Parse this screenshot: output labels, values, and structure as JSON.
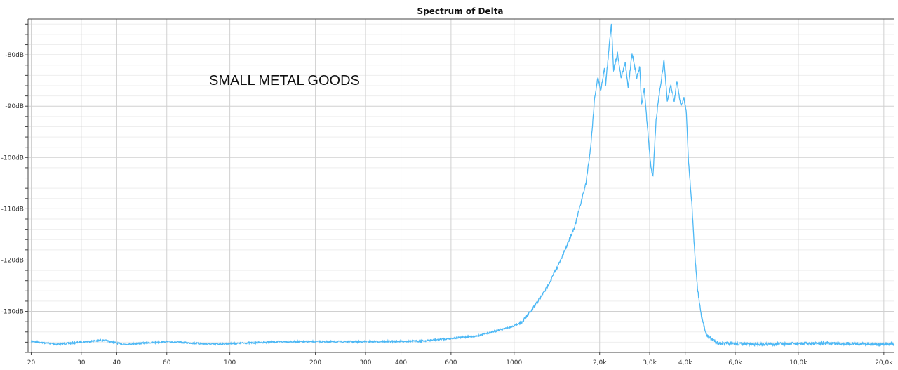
{
  "chart_data": {
    "type": "line",
    "title": "Spectrum of Delta",
    "annotation": "SMALL METAL GOODS",
    "xscale": "log",
    "xlim": [
      19.5,
      21800
    ],
    "ylim": [
      -138,
      -73
    ],
    "grid": true,
    "x_ticks": [
      20,
      30,
      40,
      60,
      100,
      200,
      300,
      400,
      600,
      1000,
      2000,
      3000,
      4000,
      6000,
      10000,
      20000
    ],
    "x_tick_labels": [
      "20",
      "30",
      "40",
      "60",
      "100",
      "200",
      "300",
      "400",
      "600",
      "1000",
      "2,0k",
      "3,0k",
      "4,0k",
      "6,0k",
      "10,0k",
      "20,0k"
    ],
    "y_ticks": [
      -80,
      -90,
      -100,
      -110,
      -120,
      -130
    ],
    "y_tick_labels": [
      "-80dB",
      "-90dB",
      "-100dB",
      "-110dB",
      "-120dB",
      "-130dB"
    ],
    "line_color": "#4db8f5",
    "series": [
      {
        "x": [
          20,
          24.7,
          36,
          42,
          61,
          86,
          152,
          267,
          470,
          740,
          980,
          1070,
          1160,
          1300,
          1460,
          1640,
          1790,
          1860,
          1920,
          1970,
          2020,
          2080,
          2100,
          2200,
          2240,
          2310,
          2380,
          2460,
          2520,
          2600,
          2700,
          2770,
          2810,
          2870,
          2930,
          3030,
          3080,
          3160,
          3240,
          3370,
          3460,
          3560,
          3660,
          3740,
          3860,
          3960,
          4040,
          4110,
          4220,
          4320,
          4420,
          4560,
          4770,
          5250,
          7000,
          12600,
          21800
        ],
        "y": [
          -135.8,
          -136.4,
          -135.6,
          -136.4,
          -135.9,
          -136.4,
          -135.9,
          -135.9,
          -135.8,
          -134.8,
          -133,
          -132,
          -129.6,
          -125.5,
          -120,
          -113.2,
          -105,
          -98,
          -88.5,
          -84.4,
          -87,
          -82.3,
          -85.8,
          -73.7,
          -83,
          -79.6,
          -84.4,
          -81.6,
          -86.4,
          -79.6,
          -84.4,
          -82.3,
          -89.9,
          -86.4,
          -92.6,
          -102,
          -103.6,
          -92.6,
          -87.8,
          -81,
          -89.2,
          -85.8,
          -89.2,
          -85,
          -89.9,
          -88.5,
          -91.2,
          -100.8,
          -109,
          -118.6,
          -125.5,
          -131,
          -134.8,
          -136.2,
          -136.4,
          -136.2,
          -136.4
        ]
      }
    ]
  }
}
